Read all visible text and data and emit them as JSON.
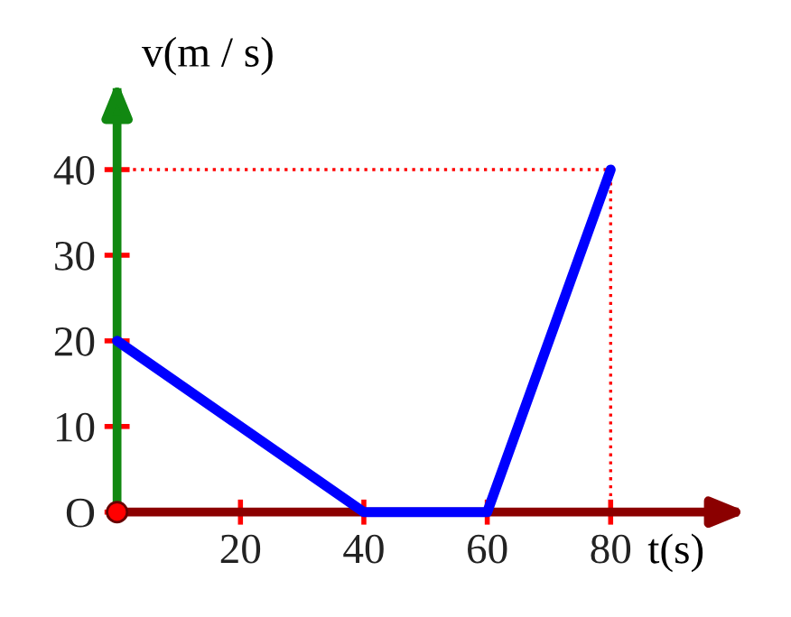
{
  "chart_data": {
    "type": "line",
    "xlabel": "t(s)",
    "ylabel": "v(m / s)",
    "x": [
      0,
      40,
      60,
      80
    ],
    "series": [
      {
        "color": "#0000ff",
        "values": [
          20,
          0,
          0,
          40
        ]
      }
    ],
    "xlim": [
      0,
      100
    ],
    "ylim": [
      0,
      49
    ],
    "xticks": [
      20,
      40,
      60,
      80
    ],
    "yticks": [
      {
        "value": 0,
        "label": "O"
      },
      10,
      20,
      30,
      40
    ],
    "ref_lines": [
      {
        "axis": "y",
        "value": 40,
        "label": null,
        "color": "#ff0000",
        "line_style": "dotted"
      },
      {
        "axis": "x",
        "value": 80,
        "label": null,
        "color": "#ff0000",
        "line_style": "dotted"
      }
    ],
    "grid": false,
    "marker": "none",
    "line_style": "solid"
  }
}
